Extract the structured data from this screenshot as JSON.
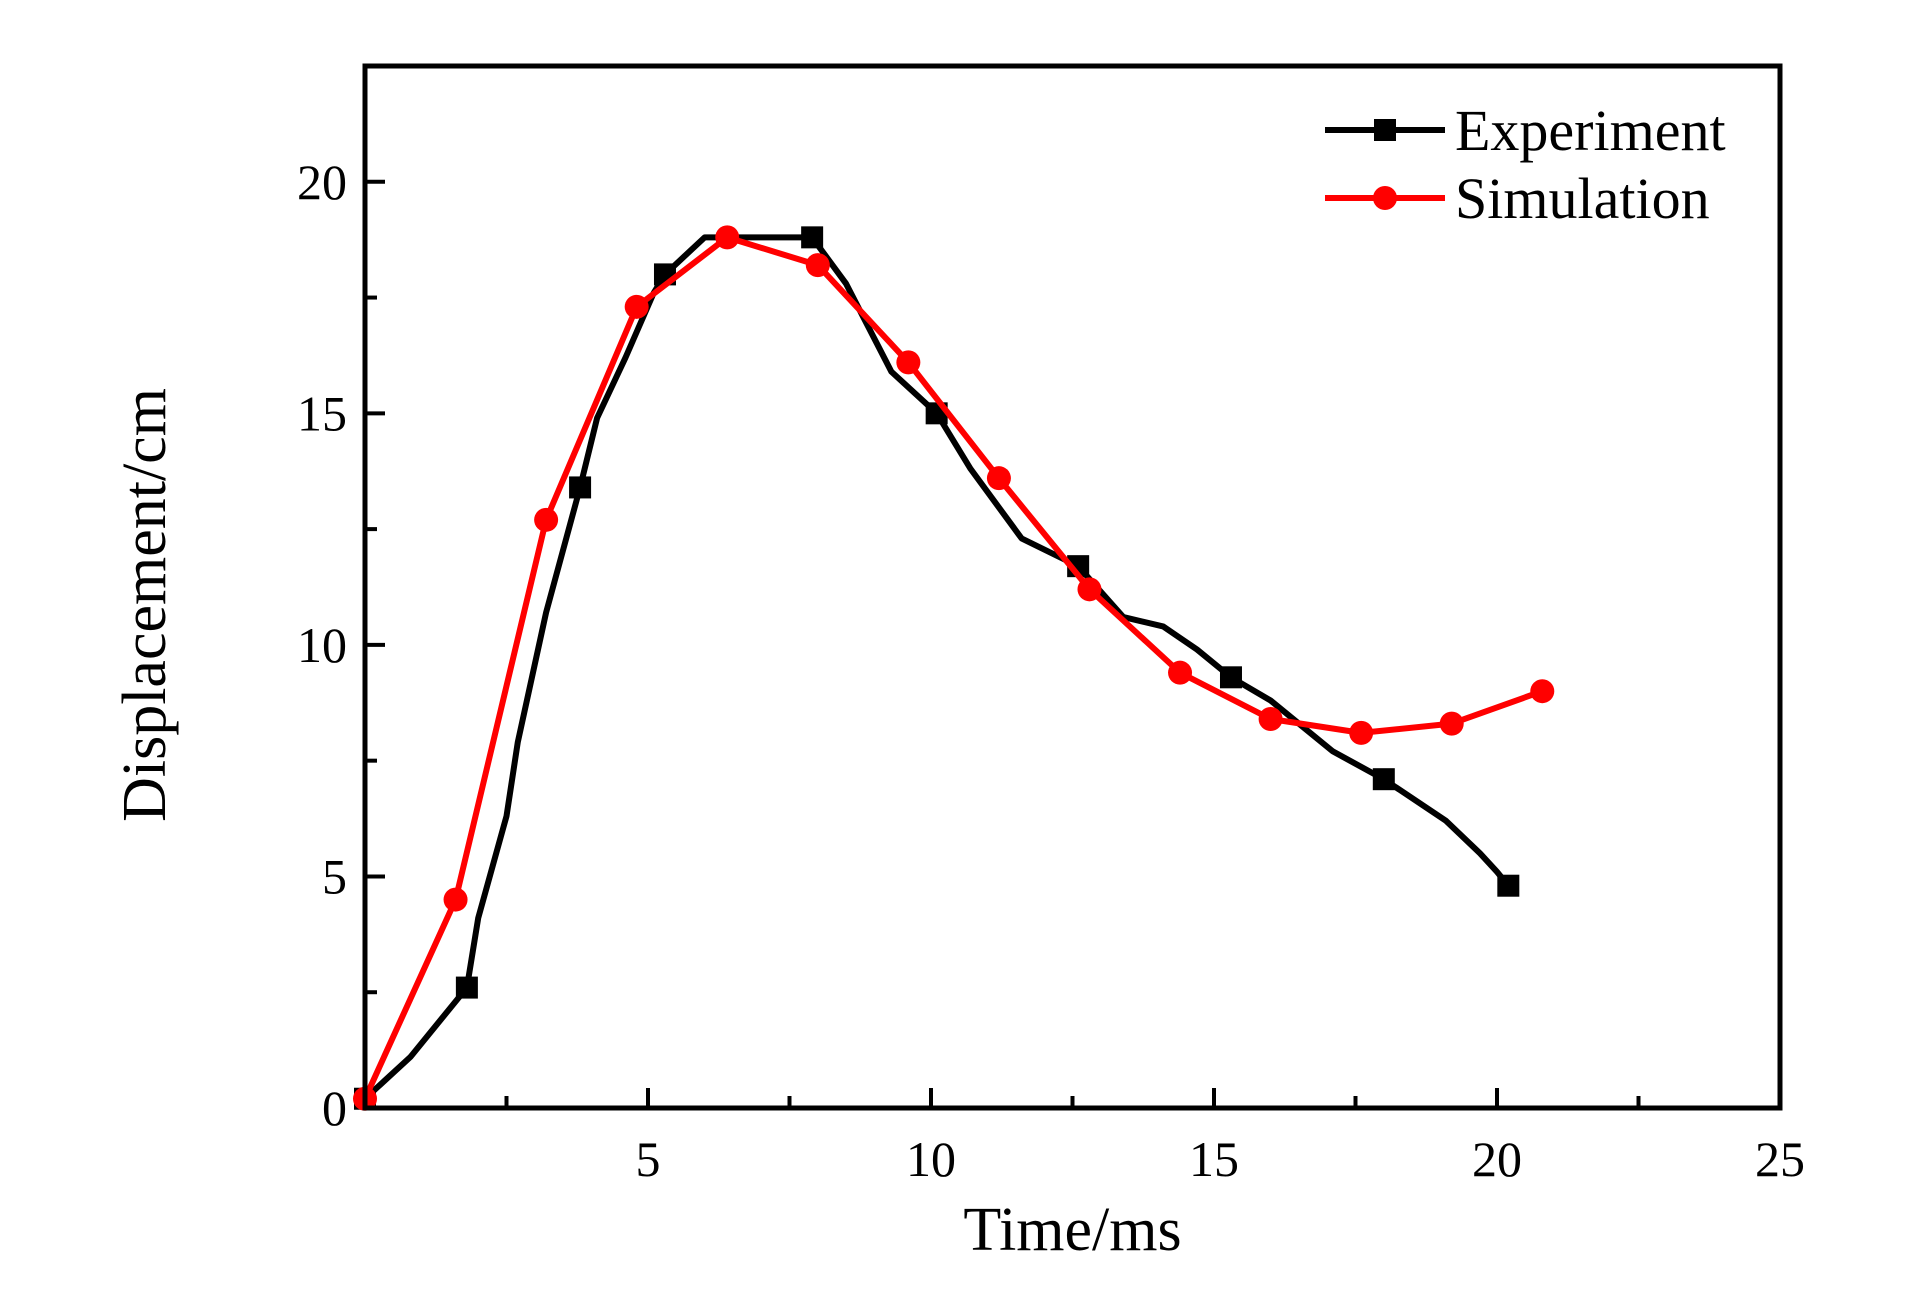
{
  "chart_data": {
    "type": "line",
    "title": "",
    "xlabel": "Time/ms",
    "ylabel": "Displacement/cm",
    "xlim": [
      0,
      25
    ],
    "ylim": [
      0,
      22.5
    ],
    "xticks": [
      5,
      10,
      15,
      20,
      25
    ],
    "yticks": [
      0,
      5,
      10,
      15,
      20
    ],
    "grid": false,
    "legend_position": "top-right",
    "series": [
      {
        "name": "Experiment",
        "color": "#000000",
        "marker": "square",
        "x": [
          0,
          0.8,
          1.8,
          2.0,
          2.5,
          2.7,
          3.2,
          3.8,
          4.1,
          4.6,
          5.1,
          5.3,
          6.0,
          6.5,
          7.0,
          7.5,
          7.9,
          8.5,
          9.3,
          10.1,
          10.7,
          11.6,
          12.6,
          13.4,
          14.1,
          14.7,
          15.3,
          16.0,
          16.4,
          17.1,
          18.0,
          19.1,
          19.7,
          20.0,
          20.2
        ],
        "y": [
          0.2,
          1.1,
          2.6,
          4.1,
          6.3,
          7.9,
          10.7,
          13.4,
          14.9,
          16.2,
          17.6,
          18.0,
          18.8,
          18.8,
          18.8,
          18.8,
          18.8,
          17.8,
          15.9,
          15.0,
          13.8,
          12.3,
          11.7,
          10.6,
          10.4,
          9.9,
          9.3,
          8.8,
          8.4,
          7.7,
          7.1,
          6.2,
          5.5,
          5.1,
          4.8
        ]
      },
      {
        "name": "Simulation",
        "color": "#ff0000",
        "marker": "circle",
        "x": [
          0,
          1.6,
          3.2,
          4.8,
          6.4,
          8.0,
          9.6,
          11.2,
          12.8,
          14.4,
          16.0,
          17.6,
          19.2,
          20.8
        ],
        "y": [
          0.2,
          4.5,
          12.7,
          17.3,
          18.8,
          18.2,
          16.1,
          13.6,
          11.2,
          9.4,
          8.4,
          8.1,
          8.3,
          9.0
        ]
      }
    ],
    "markers_every_experiment": [
      0,
      2,
      7,
      11,
      16,
      19,
      22,
      26,
      30,
      34
    ]
  }
}
